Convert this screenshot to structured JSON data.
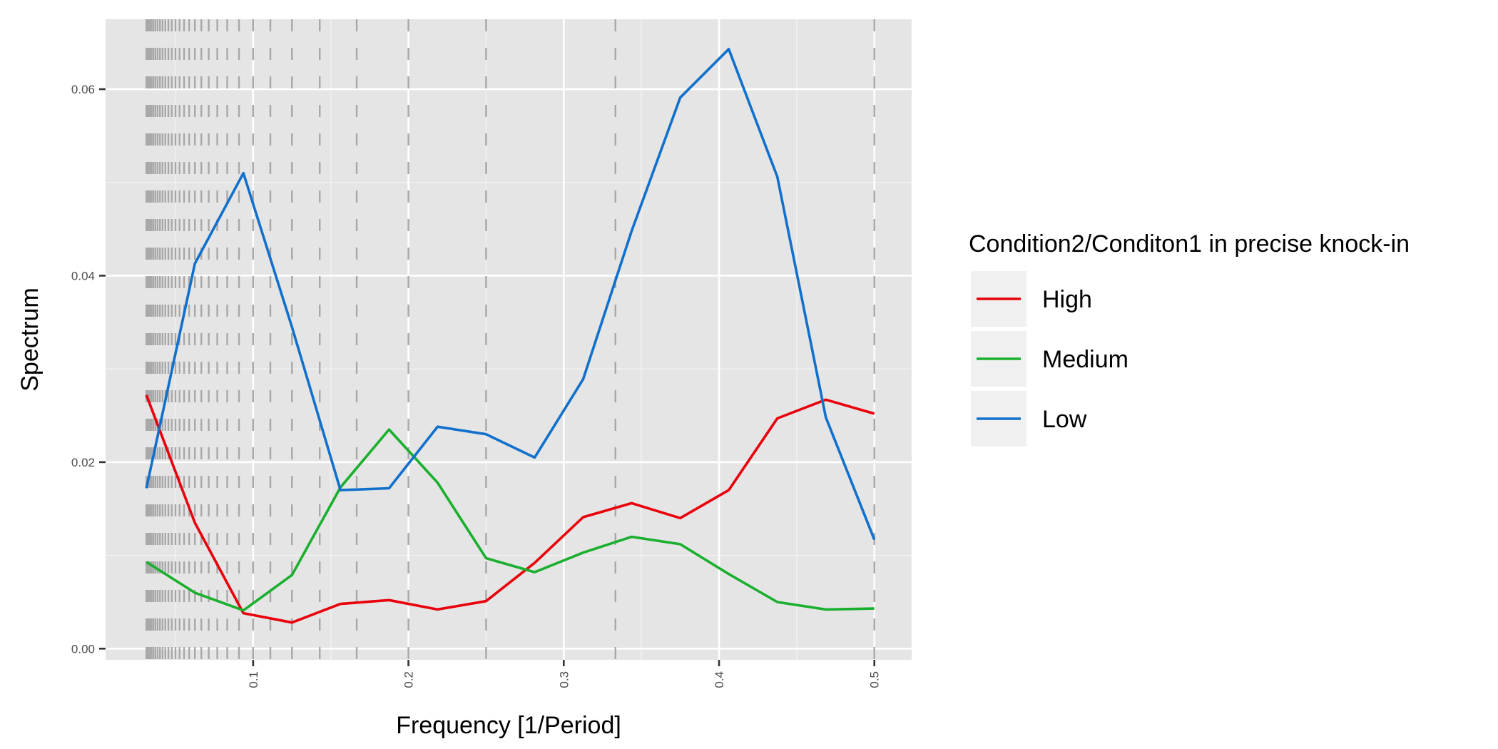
{
  "chart_data": {
    "type": "line",
    "title": "",
    "xlabel": "Frequency [1/Period]",
    "ylabel": "Spectrum",
    "xlim": [
      0.005,
      0.524
    ],
    "ylim": [
      -0.0012,
      0.0675
    ],
    "x_ticks": [
      0.1,
      0.2,
      0.3,
      0.4,
      0.5
    ],
    "x_tick_labels": [
      "0.1",
      "0.2",
      "0.3",
      "0.4",
      "0.5"
    ],
    "y_ticks": [
      0,
      0.02,
      0.04,
      0.06
    ],
    "y_tick_labels": [
      "0.00",
      "0.02",
      "0.04",
      "0.06"
    ],
    "grid": true,
    "reference_lines": [
      0.03125,
      0.03226,
      0.03333,
      0.03448,
      0.03571,
      0.03704,
      0.03846,
      0.04,
      0.04167,
      0.04348,
      0.04545,
      0.04762,
      0.05,
      0.05263,
      0.05556,
      0.05882,
      0.0625,
      0.06667,
      0.07143,
      0.07692,
      0.08333,
      0.09091,
      0.1,
      0.1111,
      0.125,
      0.1429,
      0.1667,
      0.2,
      0.25,
      0.3333,
      0.5
    ],
    "legend": {
      "title": "Condition2/Conditon1 in precise knock-in",
      "position": "right",
      "entries": [
        "High",
        "Medium",
        "Low"
      ]
    },
    "x": [
      0.03125,
      0.0625,
      0.09375,
      0.125,
      0.15625,
      0.1875,
      0.21875,
      0.25,
      0.28125,
      0.3125,
      0.34375,
      0.375,
      0.40625,
      0.4375,
      0.46875,
      0.5
    ],
    "series": [
      {
        "name": "High",
        "color": "#e8000b",
        "values": [
          0.0272,
          0.0135,
          0.0038,
          0.0028,
          0.0048,
          0.0052,
          0.0042,
          0.0051,
          0.0092,
          0.0141,
          0.0156,
          0.014,
          0.017,
          0.0247,
          0.0267,
          0.0252
        ]
      },
      {
        "name": "Medium",
        "color": "#1aaf2e",
        "values": [
          0.0093,
          0.006,
          0.0041,
          0.0079,
          0.0173,
          0.0235,
          0.0178,
          0.0097,
          0.0082,
          0.0103,
          0.012,
          0.0112,
          0.008,
          0.005,
          0.0042,
          0.0043
        ]
      },
      {
        "name": "Low",
        "color": "#1170cc",
        "values": [
          0.0172,
          0.0413,
          0.051,
          0.0345,
          0.017,
          0.0172,
          0.0238,
          0.023,
          0.0205,
          0.0289,
          0.0448,
          0.0591,
          0.0643,
          0.0506,
          0.0248,
          0.0117
        ]
      }
    ]
  }
}
